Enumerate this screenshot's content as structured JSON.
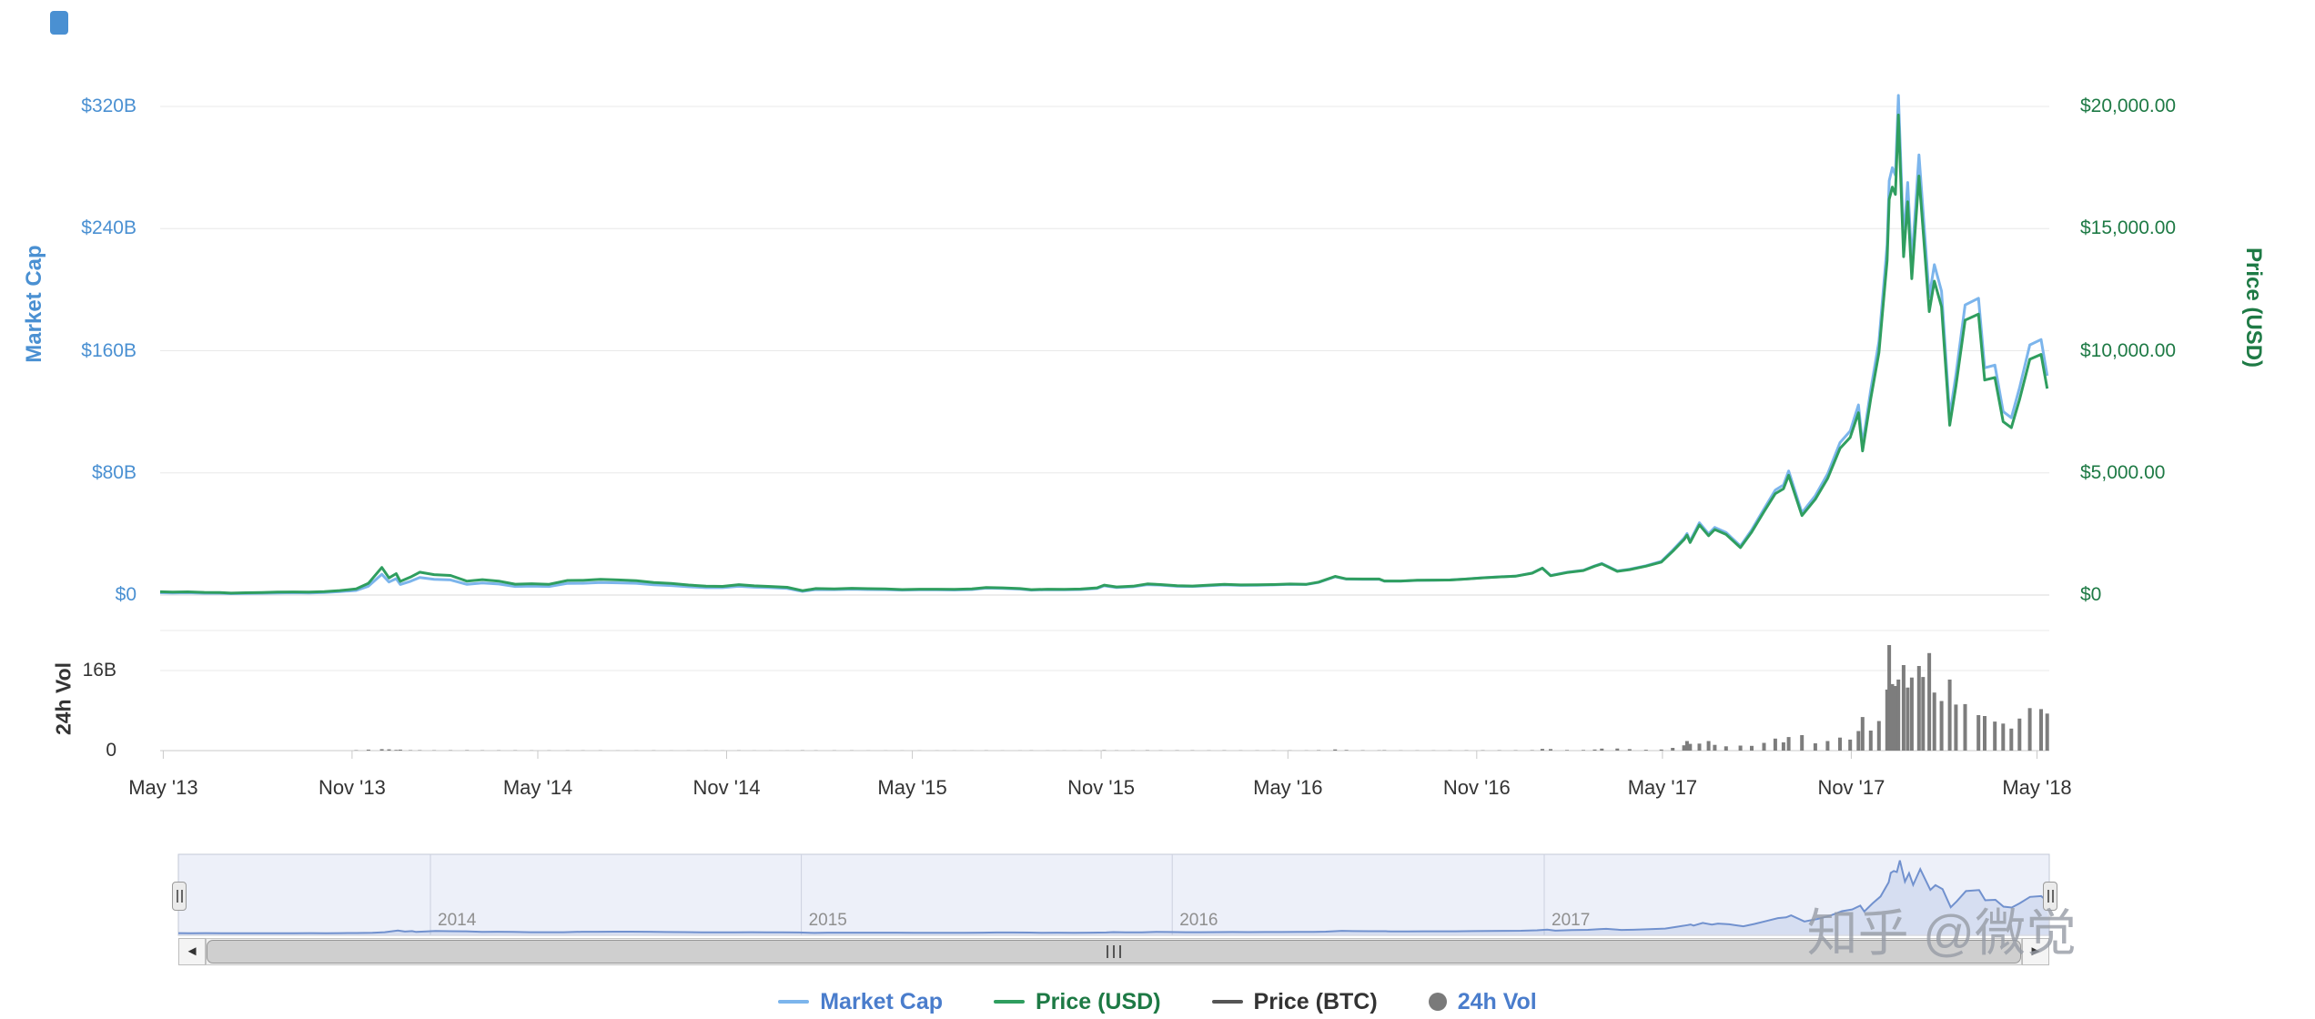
{
  "watermark": {
    "text": "知乎 @微觉"
  },
  "scrollbar": {
    "left_arrow": "◄",
    "right_arrow": "►"
  },
  "colors": {
    "market_cap_line": "#7cb5ec",
    "price_line": "#2f9e5f",
    "price_btc_line": "#555555",
    "volume_bar": "#7d7d7d",
    "navigator_line": "#7191ce",
    "navigator_fill": "rgba(113,145,206,0.18)",
    "navigator_bg": "#edf0f9",
    "mc_axis_text": "#4a90d2",
    "price_axis_text": "#1e7a45",
    "vol_axis_text": "#333333",
    "grid_line": "#e8e8e8"
  },
  "axes": {
    "market_cap": {
      "title": "Market Cap",
      "ticks": [
        {
          "label": "$0",
          "value": 0
        },
        {
          "label": "$80B",
          "value": 80
        },
        {
          "label": "$160B",
          "value": 160
        },
        {
          "label": "$240B",
          "value": 240
        },
        {
          "label": "$320B",
          "value": 320
        }
      ]
    },
    "price_usd": {
      "title": "Price (USD)",
      "ticks": [
        {
          "label": "$0",
          "value": 0
        },
        {
          "label": "$5,000.00",
          "value": 5000
        },
        {
          "label": "$10,000.00",
          "value": 10000
        },
        {
          "label": "$15,000.00",
          "value": 15000
        },
        {
          "label": "$20,000.00",
          "value": 20000
        }
      ]
    },
    "volume": {
      "title": "24h Vol",
      "ticks": [
        {
          "label": "0",
          "value": 0
        },
        {
          "label": "16B",
          "value": 16
        }
      ]
    },
    "time": {
      "ticks": [
        {
          "label": "May '13",
          "date": "2013-05-01"
        },
        {
          "label": "Nov '13",
          "date": "2013-11-01"
        },
        {
          "label": "May '14",
          "date": "2014-05-01"
        },
        {
          "label": "Nov '14",
          "date": "2014-11-01"
        },
        {
          "label": "May '15",
          "date": "2015-05-01"
        },
        {
          "label": "Nov '15",
          "date": "2015-11-01"
        },
        {
          "label": "May '16",
          "date": "2016-05-01"
        },
        {
          "label": "Nov '16",
          "date": "2016-11-01"
        },
        {
          "label": "May '17",
          "date": "2017-05-01"
        },
        {
          "label": "Nov '17",
          "date": "2017-11-01"
        },
        {
          "label": "May '18",
          "date": "2018-05-01"
        }
      ]
    }
  },
  "navigator": {
    "range_start": "2013-04-28",
    "range_end": "2018-05-13",
    "years": [
      {
        "label": "2014",
        "date": "2014-01-01"
      },
      {
        "label": "2015",
        "date": "2015-01-01"
      },
      {
        "label": "2016",
        "date": "2016-01-01"
      },
      {
        "label": "2017",
        "date": "2017-01-01"
      }
    ]
  },
  "legend": {
    "items": [
      {
        "label": "Market Cap",
        "color": "#7cb5ec",
        "text_color": "#4a7dcc",
        "shape": "line"
      },
      {
        "label": "Price (USD)",
        "color": "#2f9e5f",
        "text_color": "#1e7a45",
        "shape": "line"
      },
      {
        "label": "Price (BTC)",
        "color": "#555555",
        "text_color": "#333333",
        "shape": "line"
      },
      {
        "label": "24h Vol",
        "color": "#7a7a7a",
        "text_color": "#4a7dcc",
        "shape": "circle"
      }
    ]
  },
  "chart_data": {
    "type": "line",
    "title": "",
    "x_range": [
      "2013-04-28",
      "2018-05-13"
    ],
    "axis_ranges": {
      "market_cap_billion_usd": [
        0,
        320
      ],
      "price_usd": [
        0,
        20000
      ],
      "volume_24h_billion_usd": [
        0,
        16
      ]
    },
    "legend_position": "bottom",
    "series": [
      {
        "name": "Market Cap",
        "type": "line",
        "axis": "market_cap",
        "color": "#7cb5ec",
        "unit": "USD billions"
      },
      {
        "name": "Price (USD)",
        "type": "line",
        "axis": "price_usd",
        "color": "#2f9e5f",
        "unit": "USD"
      },
      {
        "name": "Price (BTC)",
        "type": "line",
        "color": "#555555",
        "visible": false
      },
      {
        "name": "24h Vol",
        "type": "bar",
        "axis": "volume",
        "color": "#7d7d7d",
        "unit": "USD billions"
      }
    ],
    "columns": [
      "date",
      "price_usd",
      "market_cap_billion_usd",
      "volume_24h_billion_usd"
    ],
    "points": [
      [
        "2013-04-28",
        135,
        1.5,
        0
      ],
      [
        "2013-05-10",
        118,
        1.3,
        0
      ],
      [
        "2013-05-25",
        132,
        1.5,
        0
      ],
      [
        "2013-06-10",
        108,
        1.2,
        0
      ],
      [
        "2013-06-25",
        103,
        1.2,
        0
      ],
      [
        "2013-07-06",
        80,
        0.9,
        0
      ],
      [
        "2013-07-20",
        92,
        1.1,
        0
      ],
      [
        "2013-08-05",
        106,
        1.2,
        0
      ],
      [
        "2013-08-20",
        118,
        1.4,
        0
      ],
      [
        "2013-09-05",
        128,
        1.5,
        0
      ],
      [
        "2013-09-20",
        123,
        1.4,
        0
      ],
      [
        "2013-10-05",
        137,
        1.6,
        0
      ],
      [
        "2013-10-20",
        183,
        2.2,
        0
      ],
      [
        "2013-11-05",
        251,
        3.0,
        0.1
      ],
      [
        "2013-11-17",
        480,
        5.8,
        0.2
      ],
      [
        "2013-11-30",
        1128,
        13.6,
        0.3
      ],
      [
        "2013-12-07",
        700,
        8.5,
        0.25
      ],
      [
        "2013-12-14",
        875,
        10.7,
        0.15
      ],
      [
        "2013-12-18",
        560,
        6.9,
        0.2
      ],
      [
        "2013-12-28",
        735,
        9.0,
        0.1
      ],
      [
        "2014-01-06",
        935,
        11.5,
        0.1
      ],
      [
        "2014-01-20",
        835,
        10.3,
        0.07
      ],
      [
        "2014-02-05",
        800,
        9.9,
        0.07
      ],
      [
        "2014-02-21",
        565,
        7.0,
        0.1
      ],
      [
        "2014-03-08",
        630,
        7.9,
        0.06
      ],
      [
        "2014-03-24",
        570,
        7.2,
        0.05
      ],
      [
        "2014-04-09",
        445,
        5.6,
        0.06
      ],
      [
        "2014-04-25",
        460,
        5.8,
        0.04
      ],
      [
        "2014-05-12",
        440,
        5.6,
        0.03
      ],
      [
        "2014-05-30",
        595,
        7.6,
        0.04
      ],
      [
        "2014-06-14",
        600,
        7.7,
        0.03
      ],
      [
        "2014-07-01",
        640,
        8.2,
        0.03
      ],
      [
        "2014-07-18",
        620,
        8.0,
        0.02
      ],
      [
        "2014-08-05",
        590,
        7.7,
        0.02
      ],
      [
        "2014-08-22",
        515,
        6.7,
        0.03
      ],
      [
        "2014-09-08",
        475,
        6.2,
        0.02
      ],
      [
        "2014-09-25",
        410,
        5.4,
        0.02
      ],
      [
        "2014-10-12",
        360,
        4.8,
        0.02
      ],
      [
        "2014-10-28",
        355,
        4.8,
        0.02
      ],
      [
        "2014-11-13",
        425,
        5.7,
        0.03
      ],
      [
        "2014-11-28",
        375,
        5.1,
        0.02
      ],
      [
        "2014-12-14",
        350,
        4.8,
        0.02
      ],
      [
        "2014-12-30",
        315,
        4.3,
        0.02
      ],
      [
        "2015-01-14",
        178,
        2.4,
        0.06
      ],
      [
        "2015-01-27",
        265,
        3.6,
        0.04
      ],
      [
        "2015-02-14",
        255,
        3.5,
        0.03
      ],
      [
        "2015-03-03",
        275,
        3.8,
        0.03
      ],
      [
        "2015-03-19",
        260,
        3.6,
        0.02
      ],
      [
        "2015-04-05",
        250,
        3.5,
        0.02
      ],
      [
        "2015-04-21",
        225,
        3.2,
        0.02
      ],
      [
        "2015-05-08",
        240,
        3.4,
        0.02
      ],
      [
        "2015-05-25",
        237,
        3.4,
        0.01
      ],
      [
        "2015-06-11",
        230,
        3.3,
        0.01
      ],
      [
        "2015-06-28",
        250,
        3.6,
        0.02
      ],
      [
        "2015-07-12",
        310,
        4.5,
        0.03
      ],
      [
        "2015-07-28",
        295,
        4.3,
        0.02
      ],
      [
        "2015-08-14",
        265,
        3.9,
        0.02
      ],
      [
        "2015-08-25",
        220,
        3.2,
        0.04
      ],
      [
        "2015-09-10",
        240,
        3.5,
        0.02
      ],
      [
        "2015-09-26",
        235,
        3.4,
        0.01
      ],
      [
        "2015-10-12",
        247,
        3.6,
        0.01
      ],
      [
        "2015-10-28",
        295,
        4.3,
        0.02
      ],
      [
        "2015-11-04",
        405,
        6.0,
        0.09
      ],
      [
        "2015-11-16",
        330,
        4.9,
        0.04
      ],
      [
        "2015-12-02",
        360,
        5.4,
        0.04
      ],
      [
        "2015-12-16",
        455,
        6.8,
        0.08
      ],
      [
        "2015-12-29",
        430,
        6.5,
        0.04
      ],
      [
        "2016-01-14",
        380,
        5.7,
        0.06
      ],
      [
        "2016-01-29",
        370,
        5.6,
        0.05
      ],
      [
        "2016-02-14",
        405,
        6.1,
        0.04
      ],
      [
        "2016-02-29",
        435,
        6.6,
        0.05
      ],
      [
        "2016-03-16",
        415,
        6.3,
        0.03
      ],
      [
        "2016-04-01",
        417,
        6.4,
        0.03
      ],
      [
        "2016-04-17",
        430,
        6.6,
        0.03
      ],
      [
        "2016-05-03",
        450,
        7.0,
        0.03
      ],
      [
        "2016-05-19",
        440,
        6.9,
        0.04
      ],
      [
        "2016-05-31",
        530,
        8.3,
        0.09
      ],
      [
        "2016-06-16",
        765,
        12.0,
        0.24
      ],
      [
        "2016-06-27",
        660,
        10.4,
        0.12
      ],
      [
        "2016-07-13",
        655,
        10.3,
        0.07
      ],
      [
        "2016-07-29",
        655,
        10.3,
        0.05
      ],
      [
        "2016-08-03",
        575,
        9.1,
        0.1
      ],
      [
        "2016-08-19",
        575,
        9.1,
        0.04
      ],
      [
        "2016-09-04",
        605,
        9.6,
        0.03
      ],
      [
        "2016-09-20",
        610,
        9.7,
        0.03
      ],
      [
        "2016-10-06",
        615,
        9.9,
        0.04
      ],
      [
        "2016-10-22",
        655,
        10.5,
        0.06
      ],
      [
        "2016-11-07",
        705,
        11.3,
        0.07
      ],
      [
        "2016-11-23",
        740,
        11.9,
        0.07
      ],
      [
        "2016-12-09",
        770,
        12.4,
        0.07
      ],
      [
        "2016-12-25",
        895,
        14.4,
        0.1
      ],
      [
        "2017-01-04",
        1100,
        17.7,
        0.35
      ],
      [
        "2017-01-12",
        790,
        12.8,
        0.31
      ],
      [
        "2017-01-28",
        920,
        14.9,
        0.12
      ],
      [
        "2017-02-13",
        1000,
        16.2,
        0.13
      ],
      [
        "2017-02-24",
        1180,
        19.1,
        0.22
      ],
      [
        "2017-03-03",
        1275,
        20.7,
        0.4
      ],
      [
        "2017-03-18",
        970,
        15.8,
        0.42
      ],
      [
        "2017-03-30",
        1040,
        16.9,
        0.29
      ],
      [
        "2017-04-15",
        1180,
        19.2,
        0.16
      ],
      [
        "2017-04-30",
        1350,
        22.1,
        0.21
      ],
      [
        "2017-05-11",
        1790,
        29.4,
        0.55
      ],
      [
        "2017-05-22",
        2270,
        37.3,
        1.05
      ],
      [
        "2017-05-25",
        2450,
        40.3,
        1.9
      ],
      [
        "2017-05-28",
        2150,
        35.4,
        1.35
      ],
      [
        "2017-06-06",
        2870,
        47.3,
        1.4
      ],
      [
        "2017-06-15",
        2430,
        40.1,
        1.9
      ],
      [
        "2017-06-21",
        2680,
        44.3,
        1.15
      ],
      [
        "2017-07-02",
        2480,
        41.0,
        0.85
      ],
      [
        "2017-07-16",
        1940,
        32.1,
        1.0
      ],
      [
        "2017-07-27",
        2580,
        42.7,
        0.95
      ],
      [
        "2017-08-08",
        3410,
        56.4,
        1.55
      ],
      [
        "2017-08-19",
        4150,
        68.7,
        2.4
      ],
      [
        "2017-08-27",
        4350,
        72.1,
        1.65
      ],
      [
        "2017-09-01",
        4900,
        81.2,
        2.7
      ],
      [
        "2017-09-14",
        3250,
        53.9,
        3.1
      ],
      [
        "2017-09-27",
        3920,
        65.1,
        1.45
      ],
      [
        "2017-10-09",
        4770,
        79.3,
        1.9
      ],
      [
        "2017-10-21",
        6000,
        99.8,
        2.6
      ],
      [
        "2017-10-31",
        6450,
        107.4,
        2.2
      ],
      [
        "2017-11-08",
        7460,
        124.5,
        3.9
      ],
      [
        "2017-11-12",
        5900,
        98.5,
        6.7
      ],
      [
        "2017-11-20",
        8040,
        134.4,
        4.0
      ],
      [
        "2017-11-28",
        9920,
        166.0,
        5.9
      ],
      [
        "2017-12-06",
        13700,
        229.4,
        12.2
      ],
      [
        "2017-12-08",
        16200,
        271.4,
        21.1
      ],
      [
        "2017-12-11",
        16700,
        279.9,
        13.3
      ],
      [
        "2017-12-14",
        16400,
        275.0,
        12.9
      ],
      [
        "2017-12-17",
        19650,
        327.2,
        14.2
      ],
      [
        "2017-12-22",
        13850,
        232.3,
        17.1
      ],
      [
        "2017-12-26",
        16100,
        270.2,
        12.6
      ],
      [
        "2017-12-30",
        12950,
        217.5,
        14.6
      ],
      [
        "2018-01-06",
        17150,
        288.3,
        16.9
      ],
      [
        "2018-01-10",
        14950,
        251.4,
        14.7
      ],
      [
        "2018-01-16",
        11600,
        195.2,
        19.5
      ],
      [
        "2018-01-21",
        12850,
        216.4,
        11.6
      ],
      [
        "2018-01-28",
        11800,
        198.9,
        9.9
      ],
      [
        "2018-02-05",
        6950,
        117.2,
        14.2
      ],
      [
        "2018-02-11",
        8550,
        144.3,
        9.2
      ],
      [
        "2018-02-20",
        11250,
        190.0,
        9.3
      ],
      [
        "2018-03-05",
        11500,
        194.4,
        7.1
      ],
      [
        "2018-03-11",
        8800,
        148.8,
        6.9
      ],
      [
        "2018-03-21",
        8900,
        150.6,
        5.8
      ],
      [
        "2018-03-29",
        7100,
        120.2,
        5.4
      ],
      [
        "2018-04-06",
        6850,
        116.1,
        4.4
      ],
      [
        "2018-04-14",
        8000,
        135.7,
        6.4
      ],
      [
        "2018-04-24",
        9650,
        163.8,
        8.5
      ],
      [
        "2018-05-05",
        9850,
        167.3,
        8.3
      ],
      [
        "2018-05-11",
        8450,
        143.6,
        7.4
      ]
    ]
  }
}
